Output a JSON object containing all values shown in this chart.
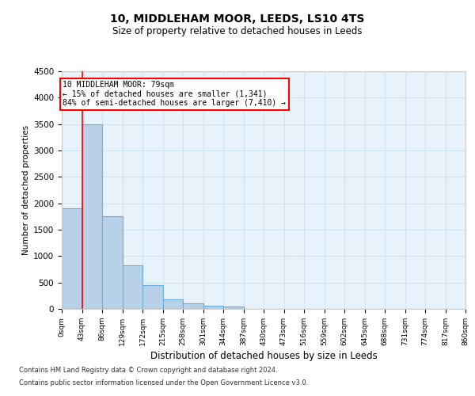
{
  "title": "10, MIDDLEHAM MOOR, LEEDS, LS10 4TS",
  "subtitle": "Size of property relative to detached houses in Leeds",
  "xlabel": "Distribution of detached houses by size in Leeds",
  "ylabel": "Number of detached properties",
  "footer1": "Contains HM Land Registry data © Crown copyright and database right 2024.",
  "footer2": "Contains public sector information licensed under the Open Government Licence v3.0.",
  "annotation_line1": "10 MIDDLEHAM MOOR: 79sqm",
  "annotation_line2": "← 15% of detached houses are smaller (1,341)",
  "annotation_line3": "84% of semi-detached houses are larger (7,410) →",
  "bar_values": [
    1900,
    3500,
    1750,
    830,
    450,
    175,
    100,
    65,
    40,
    0,
    0,
    0,
    0,
    0,
    0,
    0,
    0,
    0,
    0,
    0
  ],
  "bin_labels": [
    "0sqm",
    "43sqm",
    "86sqm",
    "129sqm",
    "172sqm",
    "215sqm",
    "258sqm",
    "301sqm",
    "344sqm",
    "387sqm",
    "430sqm",
    "473sqm",
    "516sqm",
    "559sqm",
    "602sqm",
    "645sqm",
    "688sqm",
    "731sqm",
    "774sqm",
    "817sqm",
    "860sqm"
  ],
  "bar_color": "#b8d0e8",
  "bar_edge_color": "#6aaed6",
  "grid_color": "#d0e4f0",
  "bg_color": "#e8f2fa",
  "red_line_x": 1.0,
  "ylim": [
    0,
    4500
  ],
  "yticks": [
    0,
    500,
    1000,
    1500,
    2000,
    2500,
    3000,
    3500,
    4000,
    4500
  ]
}
